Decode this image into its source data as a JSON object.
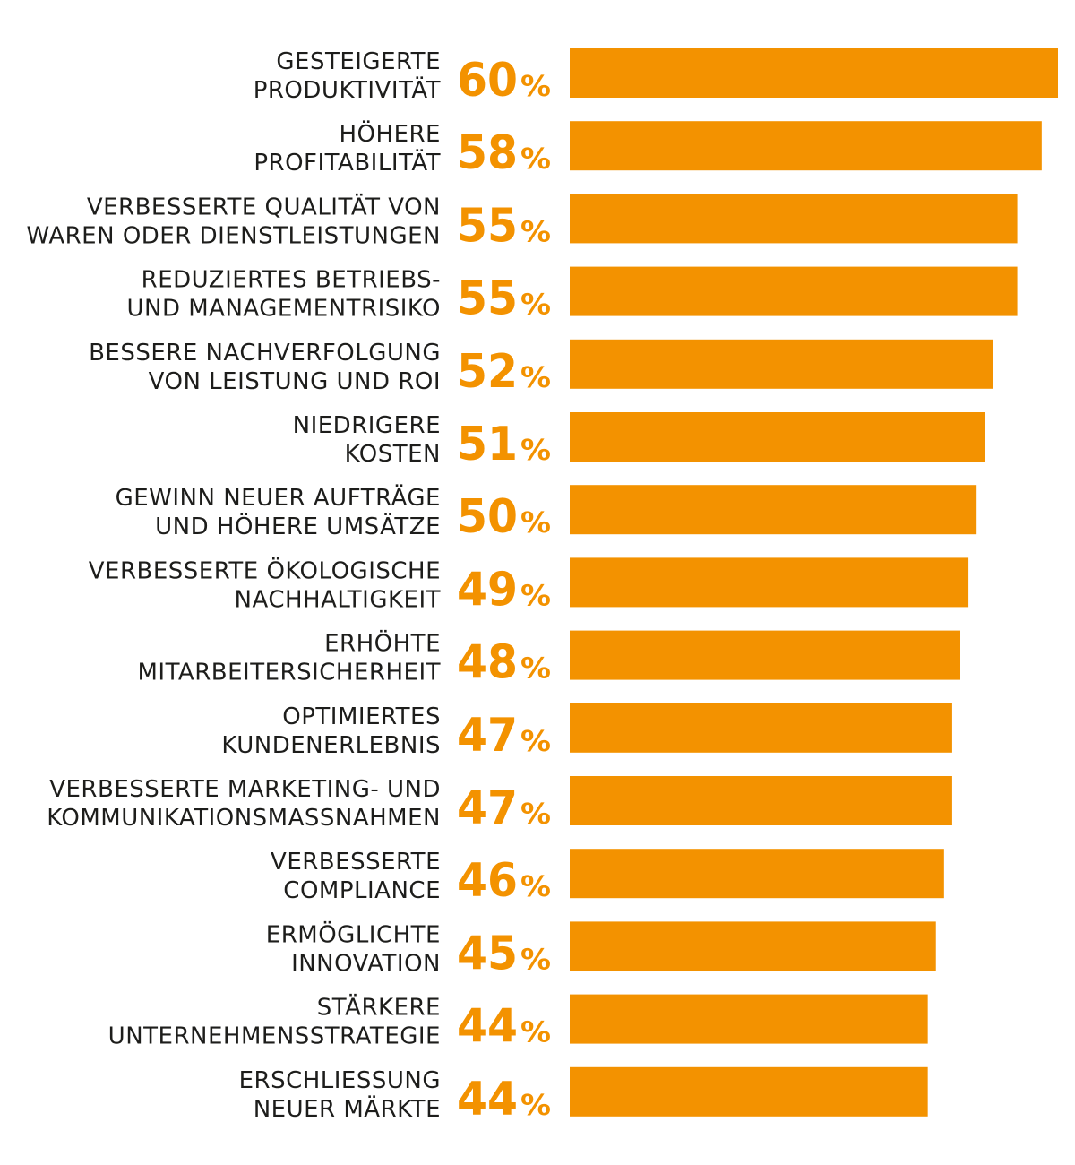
{
  "chart_data": {
    "type": "bar",
    "orientation": "horizontal",
    "categories": [
      [
        "GESTEIGERTE",
        "PRODUKTIVITÄT"
      ],
      [
        "HÖHERE",
        "PROFITABILITÄT"
      ],
      [
        "VERBESSERTE QUALITÄT VON",
        "WAREN ODER DIENSTLEISTUNGEN"
      ],
      [
        "REDUZIERTES BETRIEBS-",
        "UND MANAGEMENTRISIKO"
      ],
      [
        "BESSERE NACHVERFOLGUNG",
        "VON LEISTUNG UND ROI"
      ],
      [
        "NIEDRIGERE",
        "KOSTEN"
      ],
      [
        "GEWINN NEUER AUFTRÄGE",
        "UND HÖHERE UMSÄTZE"
      ],
      [
        "VERBESSERTE ÖKOLOGISCHE",
        "NACHHALTIGKEIT"
      ],
      [
        "ERHÖHTE",
        "MITARBEITERSICHERHEIT"
      ],
      [
        "OPTIMIERTES",
        "KUNDENERLEBNIS"
      ],
      [
        "VERBESSERTE MARKETING- UND",
        "KOMMUNIKATIONSMASSNAHMEN"
      ],
      [
        "VERBESSERTE",
        "COMPLIANCE"
      ],
      [
        "ERMÖGLICHTE",
        "INNOVATION"
      ],
      [
        "STÄRKERE",
        "UNTERNEHMENSSTRATEGIE"
      ],
      [
        "ERSCHLIESSUNG",
        "NEUER MÄRKTE"
      ]
    ],
    "values": [
      60,
      58,
      55,
      55,
      52,
      51,
      50,
      49,
      48,
      47,
      47,
      46,
      45,
      44,
      44
    ],
    "value_labels": [
      "60",
      "58",
      "55",
      "55",
      "52",
      "51",
      "50",
      "49",
      "48",
      "47",
      "47",
      "46",
      "45",
      "44",
      "44"
    ],
    "unit": "%",
    "xlim": [
      0,
      60
    ],
    "grid": false,
    "legend": "none",
    "colors": {
      "bar": "#f39200",
      "value_label": "#f39200",
      "category_label": "#1d1d1b",
      "background": "#ffffff"
    }
  }
}
